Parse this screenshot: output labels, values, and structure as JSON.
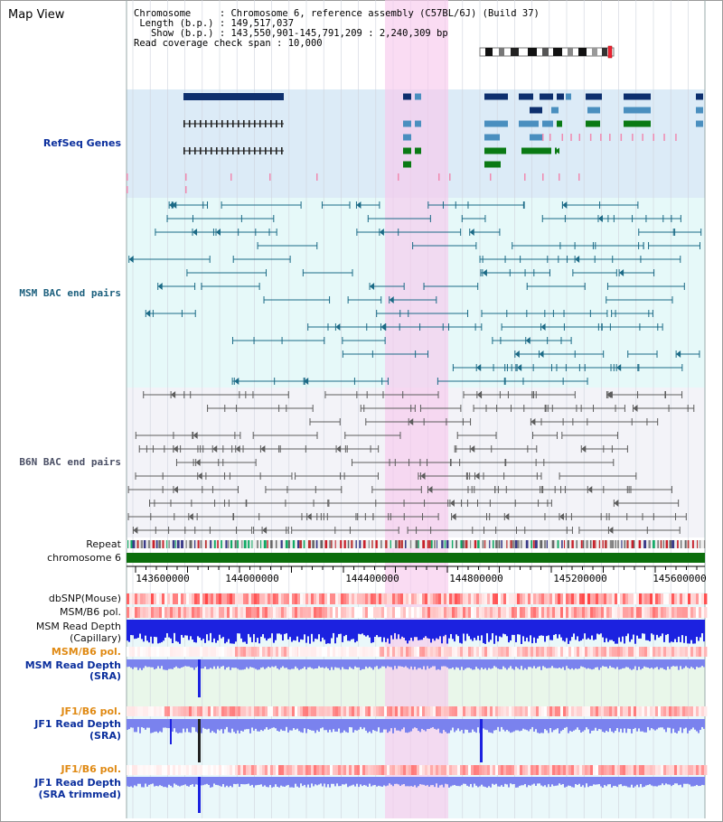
{
  "title": "Map View",
  "header": {
    "line1_label": "Chromosome",
    "line1_value": "Chromosome 6, reference assembly (C57BL/6J) (Build 37)",
    "line2_label": "Length (b.p.)",
    "line2_value": "149,517,037",
    "line3_label": "Show (b.p.)",
    "line3_value": "143,550,901-145,791,209 : 2,240,309 bp",
    "line4_label": "Read coverage check span",
    "line4_value": "10,000"
  },
  "tracks": {
    "refseq": "RefSeq Genes",
    "msm_bac": "MSM BAC end pairs",
    "b6n_bac": "B6N BAC end pairs",
    "repeat": "Repeat",
    "chromosome": "chromosome 6",
    "dbsnp": "dbSNP(Mouse)",
    "msm_b6_pol_1": "MSM/B6 pol.",
    "msm_read_depth_cap_1": "MSM Read Depth",
    "msm_read_depth_cap_2": "(Capillary)",
    "msm_b6_pol_2": "MSM/B6 pol.",
    "msm_read_depth_sra_1": "MSM Read Depth",
    "msm_read_depth_sra_2": "(SRA)",
    "jf1_b6_pol_1": "JF1/B6 pol.",
    "jf1_read_depth_sra_1": "JF1 Read Depth",
    "jf1_read_depth_sra_2": "(SRA)",
    "jf1_b6_pol_2": "JF1/B6 pol.",
    "jf1_read_depth_trim_1": "JF1 Read Depth",
    "jf1_read_depth_trim_2": "(SRA trimmed)"
  },
  "axis": {
    "ticks": [
      "143600000",
      "144000000",
      "144400000",
      "144800000",
      "145200000",
      "145600000"
    ]
  },
  "colors": {
    "refseq_bg": "#dcebf7",
    "msm_bg": "#e6f9f9",
    "b6n_bg": "#f3f3f8",
    "highlight": "#f7d2ee",
    "gene_dark": "#0d2f6e",
    "gene_mid": "#4a8fbf",
    "gene_green": "#0a7a14",
    "msm_line": "#1b6a86",
    "b6n_line": "#5c5c5c",
    "chrom_green": "#0c6e0c",
    "depth_blue": "#1c22e0",
    "depth_light": "#7a82ee"
  }
}
